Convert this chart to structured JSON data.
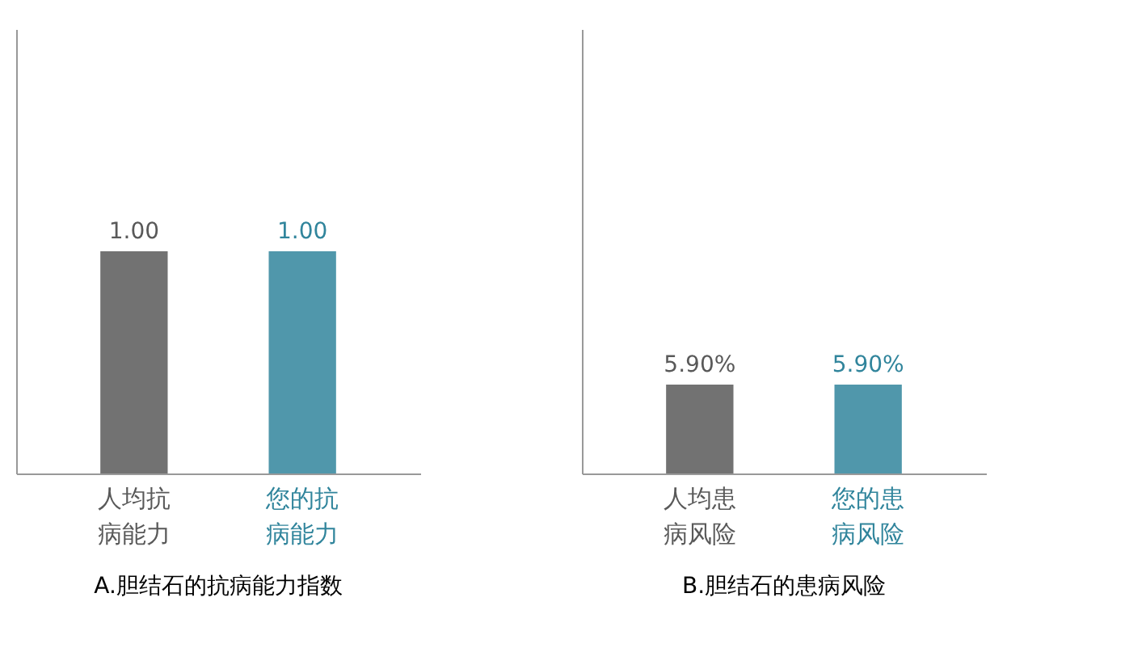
{
  "chart_data": [
    {
      "type": "bar",
      "title": "A.胆结石的抗病能力指数",
      "categories": [
        "人均抗病能力",
        "您的抗病能力"
      ],
      "values": [
        1.0,
        1.0
      ],
      "colors": [
        "#595959",
        "#31859c"
      ],
      "value_labels": [
        "1.00",
        "1.00"
      ],
      "ylim": [
        0,
        2
      ],
      "tick_labels": "x"
    },
    {
      "type": "bar",
      "title": "B.胆结石的患病风险",
      "categories": [
        "人均患病风险",
        "您的患病风险"
      ],
      "values": [
        5.9,
        5.9
      ],
      "colors": [
        "#595959",
        "#31859c"
      ],
      "value_labels": [
        "5.90%",
        "5.90%"
      ],
      "ylim": [
        0,
        29.5
      ],
      "tick_labels": "x"
    }
  ]
}
